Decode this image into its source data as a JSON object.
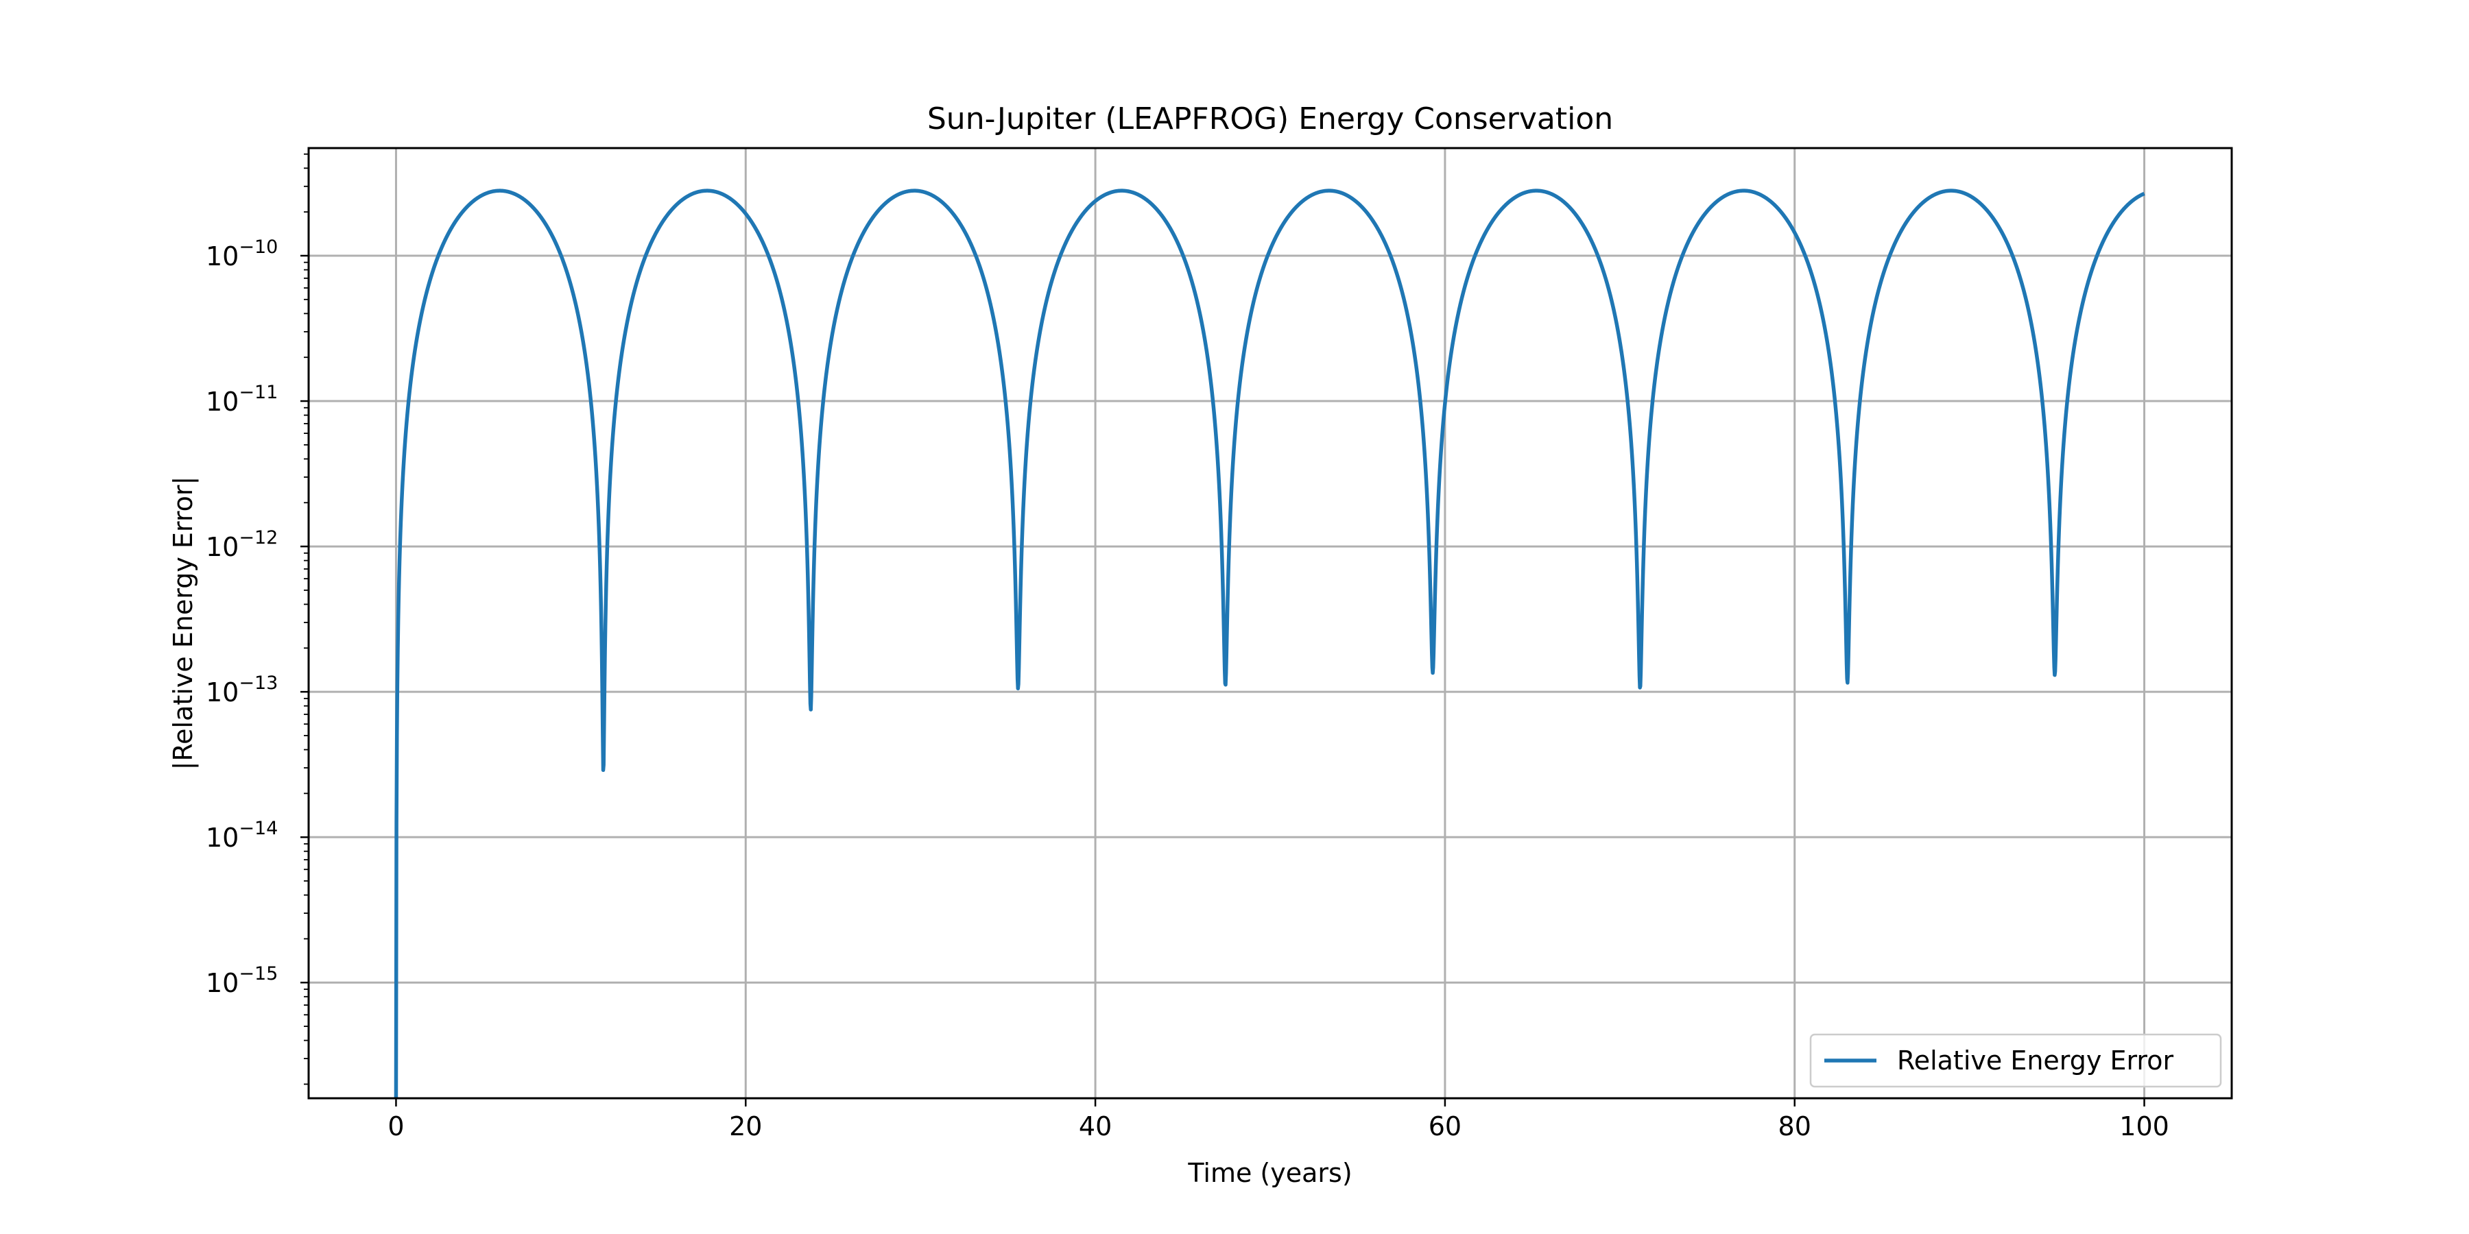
{
  "chart_data": {
    "type": "line",
    "title": "Sun-Jupiter (LEAPFROG) Energy Conservation",
    "xlabel": "Time (years)",
    "ylabel": "|Relative Energy Error|",
    "xlim": [
      -5,
      105
    ],
    "ylim": [
      1.6e-16,
      5.5e-10
    ],
    "yscale": "log",
    "grid": true,
    "legend_position": "lower-right",
    "x_ticks": [
      0,
      20,
      40,
      60,
      80,
      100
    ],
    "x_tick_labels": [
      "0",
      "20",
      "40",
      "60",
      "80",
      "100"
    ],
    "y_ticks": [
      -15,
      -14,
      -13,
      -12,
      -11,
      -10
    ],
    "y_tick_base": "10",
    "y_tick_exponents": [
      "−15",
      "−14",
      "−13",
      "−12",
      "−11",
      "−10"
    ],
    "colors": {
      "series": "#1f77b4"
    },
    "series": [
      {
        "name": "Relative Energy Error",
        "peak": 2.8e-10,
        "period_years": 11.86,
        "x_end": 100,
        "minima": [
          {
            "x": 0.0,
            "y": 1.6e-16
          },
          {
            "x": 11.86,
            "y": 2.7e-14
          },
          {
            "x": 23.72,
            "y": 7.5e-14
          },
          {
            "x": 35.58,
            "y": 1.05e-13
          },
          {
            "x": 47.44,
            "y": 1.1e-13
          },
          {
            "x": 59.3,
            "y": 1.35e-13
          },
          {
            "x": 71.16,
            "y": 1.05e-13
          },
          {
            "x": 83.02,
            "y": 1.15e-13
          },
          {
            "x": 94.88,
            "y": 1.3e-13
          }
        ]
      }
    ]
  }
}
